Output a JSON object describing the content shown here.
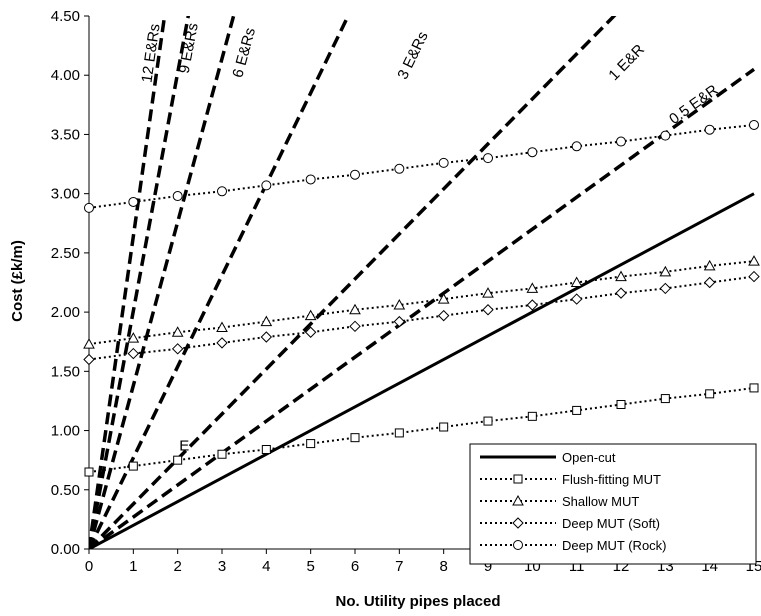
{
  "chart_data": {
    "type": "line",
    "title": "",
    "xlabel": "No. Utility pipes placed",
    "ylabel": "Cost (£k/m)",
    "xlim": [
      0,
      15
    ],
    "ylim": [
      0,
      4.5
    ],
    "x_ticks": [
      "0",
      "1",
      "2",
      "3",
      "4",
      "5",
      "6",
      "7",
      "8",
      "9",
      "10",
      "11",
      "12",
      "13",
      "14",
      "15"
    ],
    "y_ticks": [
      "0.00",
      "0.50",
      "1.00",
      "1.50",
      "2.00",
      "2.50",
      "3.00",
      "3.50",
      "4.00",
      "4.50"
    ],
    "grid": false,
    "legend_position": "bottom-right",
    "series": [
      {
        "name": "Open-cut",
        "style": "solid",
        "marker": "none",
        "x": [
          0,
          15
        ],
        "y": [
          0,
          3.0
        ]
      },
      {
        "name": "Flush-fitting MUT",
        "style": "dotted",
        "marker": "square",
        "x": [
          0,
          1,
          2,
          3,
          4,
          5,
          6,
          7,
          8,
          9,
          10,
          11,
          12,
          13,
          14,
          15
        ],
        "y": [
          0.65,
          0.7,
          0.75,
          0.8,
          0.84,
          0.89,
          0.94,
          0.98,
          1.03,
          1.08,
          1.12,
          1.17,
          1.22,
          1.27,
          1.31,
          1.36
        ]
      },
      {
        "name": "Shallow MUT",
        "style": "dotted",
        "marker": "triangle",
        "x": [
          0,
          1,
          2,
          3,
          4,
          5,
          6,
          7,
          8,
          9,
          10,
          11,
          12,
          13,
          14,
          15
        ],
        "y": [
          1.73,
          1.78,
          1.83,
          1.87,
          1.92,
          1.97,
          2.02,
          2.06,
          2.11,
          2.16,
          2.2,
          2.25,
          2.3,
          2.34,
          2.39,
          2.43
        ]
      },
      {
        "name": "Deep MUT (Soft)",
        "style": "dotted",
        "marker": "diamond",
        "x": [
          0,
          1,
          2,
          3,
          4,
          5,
          6,
          7,
          8,
          9,
          10,
          11,
          12,
          13,
          14,
          15
        ],
        "y": [
          1.6,
          1.65,
          1.69,
          1.74,
          1.79,
          1.83,
          1.88,
          1.92,
          1.97,
          2.02,
          2.06,
          2.11,
          2.16,
          2.2,
          2.25,
          2.3
        ]
      },
      {
        "name": "Deep MUT (Rock)",
        "style": "dotted",
        "marker": "circle",
        "x": [
          0,
          1,
          2,
          3,
          4,
          5,
          6,
          7,
          8,
          9,
          10,
          11,
          12,
          13,
          14,
          15
        ],
        "y": [
          2.88,
          2.93,
          2.98,
          3.02,
          3.07,
          3.12,
          3.16,
          3.21,
          3.26,
          3.3,
          3.35,
          3.4,
          3.44,
          3.49,
          3.54,
          3.58
        ]
      }
    ],
    "dashed_lines": [
      {
        "label": "12 E&Rs",
        "slope": 2.64,
        "label_x": 1.5,
        "label_y": 4.18
      },
      {
        "label": "9 E&Rs",
        "slope": 2.01,
        "label_x": 2.35,
        "label_y": 4.22
      },
      {
        "label": "6 E&Rs",
        "slope": 1.38,
        "label_x": 3.6,
        "label_y": 4.18
      },
      {
        "label": "3 E&Rs",
        "slope": 0.77,
        "label_x": 7.4,
        "label_y": 4.15
      },
      {
        "label": "1 E&R",
        "slope": 0.38,
        "label_x": 12.2,
        "label_y": 4.08
      },
      {
        "label": "0.5 E&R",
        "slope": 0.27,
        "label_x": 13.7,
        "label_y": 3.72
      }
    ],
    "annotations": [
      {
        "text": "E",
        "x": 2.15,
        "y": 0.83
      }
    ]
  }
}
